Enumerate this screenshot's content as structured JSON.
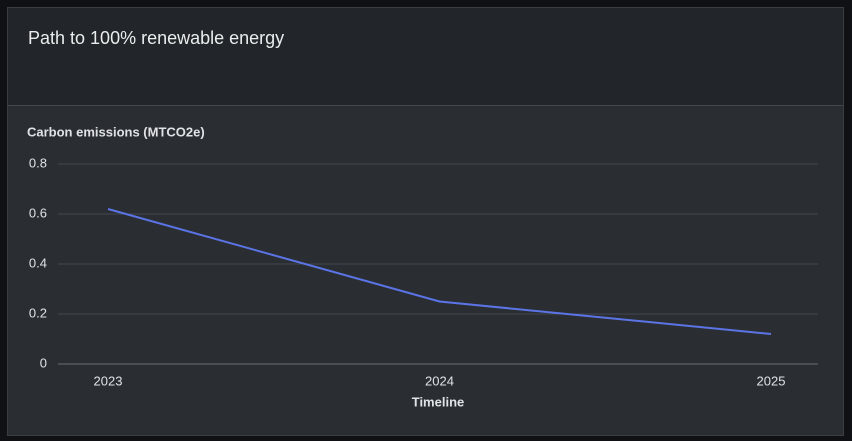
{
  "chart_data": {
    "type": "line",
    "title": "Path to 100% renewable energy",
    "y_label": "Carbon emissions (MTCO2e)",
    "x_label": "Timeline",
    "categories": [
      "2023",
      "2024",
      "2025"
    ],
    "series": [
      {
        "name": "Carbon emissions",
        "color": "#5b74e6",
        "values": [
          0.62,
          0.25,
          0.12
        ]
      }
    ],
    "ylim": [
      0,
      0.8
    ],
    "yticks": [
      0,
      0.2,
      0.4,
      0.6,
      0.8
    ],
    "grid": true,
    "legend": false
  }
}
